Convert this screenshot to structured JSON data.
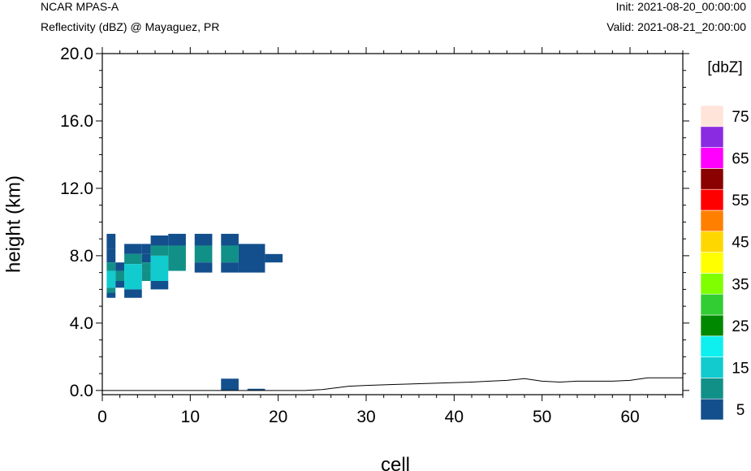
{
  "header": {
    "model": "NCAR MPAS-A",
    "field": "Reflectivity (dBZ) @ Mayaguez, PR",
    "init": "Init: 2021-08-20_00:00:00",
    "valid": "Valid: 2021-08-21_20:00:00"
  },
  "chart_data": {
    "type": "heatmap",
    "xlabel": "cell",
    "ylabel": "height (km)",
    "xlim": [
      0,
      66
    ],
    "ylim": [
      -0.25,
      20
    ],
    "x_ticks": [
      0,
      10,
      20,
      30,
      40,
      50,
      60
    ],
    "y_ticks": [
      "0.0",
      "4.0",
      "8.0",
      "12.0",
      "16.0",
      "20.0"
    ],
    "grid": false,
    "colorbar": {
      "title": "[dbZ]",
      "levels": [
        5,
        10,
        15,
        20,
        25,
        30,
        35,
        40,
        45,
        50,
        55,
        60,
        65,
        70,
        75
      ],
      "labels": [
        "5",
        "15",
        "25",
        "35",
        "45",
        "55",
        "65",
        "75"
      ],
      "colors": [
        "#134f8c",
        "#119088",
        "#11cbcf",
        "#0ef0f0",
        "#008800",
        "#32cd32",
        "#80ff00",
        "#ffff00",
        "#ffd700",
        "#ff8000",
        "#ff0000",
        "#8b0000",
        "#ff00ff",
        "#8a2be2",
        "#ffe4da"
      ]
    },
    "cells": [
      {
        "x0": 0.5,
        "x1": 1.5,
        "y0": 8.4,
        "y1": 9.3,
        "dbz": 5
      },
      {
        "x0": 0.5,
        "x1": 1.5,
        "y0": 7.6,
        "y1": 8.4,
        "dbz": 5
      },
      {
        "x0": 0.5,
        "x1": 1.5,
        "y0": 7.1,
        "y1": 7.6,
        "dbz": 10
      },
      {
        "x0": 0.5,
        "x1": 1.5,
        "y0": 6.1,
        "y1": 7.1,
        "dbz": 15
      },
      {
        "x0": 0.5,
        "x1": 1.5,
        "y0": 5.8,
        "y1": 6.1,
        "dbz": 10
      },
      {
        "x0": 0.5,
        "x1": 1.5,
        "y0": 5.5,
        "y1": 5.8,
        "dbz": 5
      },
      {
        "x0": 1.5,
        "x1": 2.5,
        "y0": 7.1,
        "y1": 7.6,
        "dbz": 5
      },
      {
        "x0": 1.5,
        "x1": 2.5,
        "y0": 6.5,
        "y1": 7.1,
        "dbz": 10
      },
      {
        "x0": 1.5,
        "x1": 2.5,
        "y0": 6.1,
        "y1": 6.5,
        "dbz": 5
      },
      {
        "x0": 2.5,
        "x1": 4.5,
        "y0": 8.1,
        "y1": 8.7,
        "dbz": 5
      },
      {
        "x0": 2.5,
        "x1": 4.5,
        "y0": 7.5,
        "y1": 8.1,
        "dbz": 10
      },
      {
        "x0": 2.5,
        "x1": 4.5,
        "y0": 6.0,
        "y1": 7.5,
        "dbz": 15
      },
      {
        "x0": 2.5,
        "x1": 4.5,
        "y0": 5.5,
        "y1": 6.0,
        "dbz": 5
      },
      {
        "x0": 4.5,
        "x1": 5.5,
        "y0": 8.1,
        "y1": 8.7,
        "dbz": 5
      },
      {
        "x0": 4.5,
        "x1": 5.5,
        "y0": 7.6,
        "y1": 8.1,
        "dbz": 5
      },
      {
        "x0": 4.5,
        "x1": 5.5,
        "y0": 7.1,
        "y1": 7.6,
        "dbz": 10
      },
      {
        "x0": 4.5,
        "x1": 5.5,
        "y0": 6.5,
        "y1": 7.1,
        "dbz": 10
      },
      {
        "x0": 5.5,
        "x1": 7.5,
        "y0": 8.6,
        "y1": 9.2,
        "dbz": 5
      },
      {
        "x0": 5.5,
        "x1": 7.5,
        "y0": 8.0,
        "y1": 8.6,
        "dbz": 10
      },
      {
        "x0": 5.5,
        "x1": 7.5,
        "y0": 6.5,
        "y1": 8.0,
        "dbz": 15
      },
      {
        "x0": 5.5,
        "x1": 7.5,
        "y0": 6.0,
        "y1": 6.5,
        "dbz": 5
      },
      {
        "x0": 7.5,
        "x1": 9.5,
        "y0": 8.6,
        "y1": 9.3,
        "dbz": 5
      },
      {
        "x0": 7.5,
        "x1": 9.5,
        "y0": 7.1,
        "y1": 8.6,
        "dbz": 10
      },
      {
        "x0": 10.5,
        "x1": 12.5,
        "y0": 8.6,
        "y1": 9.3,
        "dbz": 5
      },
      {
        "x0": 10.5,
        "x1": 12.5,
        "y0": 7.6,
        "y1": 8.6,
        "dbz": 10
      },
      {
        "x0": 10.5,
        "x1": 12.5,
        "y0": 7.0,
        "y1": 7.6,
        "dbz": 5
      },
      {
        "x0": 13.5,
        "x1": 15.5,
        "y0": 8.6,
        "y1": 9.3,
        "dbz": 5
      },
      {
        "x0": 13.5,
        "x1": 15.5,
        "y0": 7.6,
        "y1": 8.6,
        "dbz": 10
      },
      {
        "x0": 13.5,
        "x1": 15.5,
        "y0": 7.0,
        "y1": 7.6,
        "dbz": 5
      },
      {
        "x0": 15.5,
        "x1": 18.5,
        "y0": 7.0,
        "y1": 8.7,
        "dbz": 5
      },
      {
        "x0": 18.5,
        "x1": 20.5,
        "y0": 7.6,
        "y1": 8.1,
        "dbz": 5
      },
      {
        "x0": 13.5,
        "x1": 15.5,
        "y0": 0.0,
        "y1": 0.7,
        "dbz": 5
      },
      {
        "x0": 16.5,
        "x1": 18.5,
        "y0": 0.0,
        "y1": 0.1,
        "dbz": 5
      }
    ],
    "terrain": {
      "x": [
        0,
        23,
        25,
        28,
        30,
        33,
        36,
        39,
        42,
        44,
        46,
        48,
        50,
        52,
        54,
        56,
        58,
        60,
        62,
        64,
        66
      ],
      "y": [
        0.0,
        0.0,
        0.05,
        0.25,
        0.3,
        0.35,
        0.4,
        0.45,
        0.5,
        0.55,
        0.6,
        0.7,
        0.55,
        0.5,
        0.55,
        0.55,
        0.55,
        0.6,
        0.75,
        0.75,
        0.75
      ]
    }
  }
}
